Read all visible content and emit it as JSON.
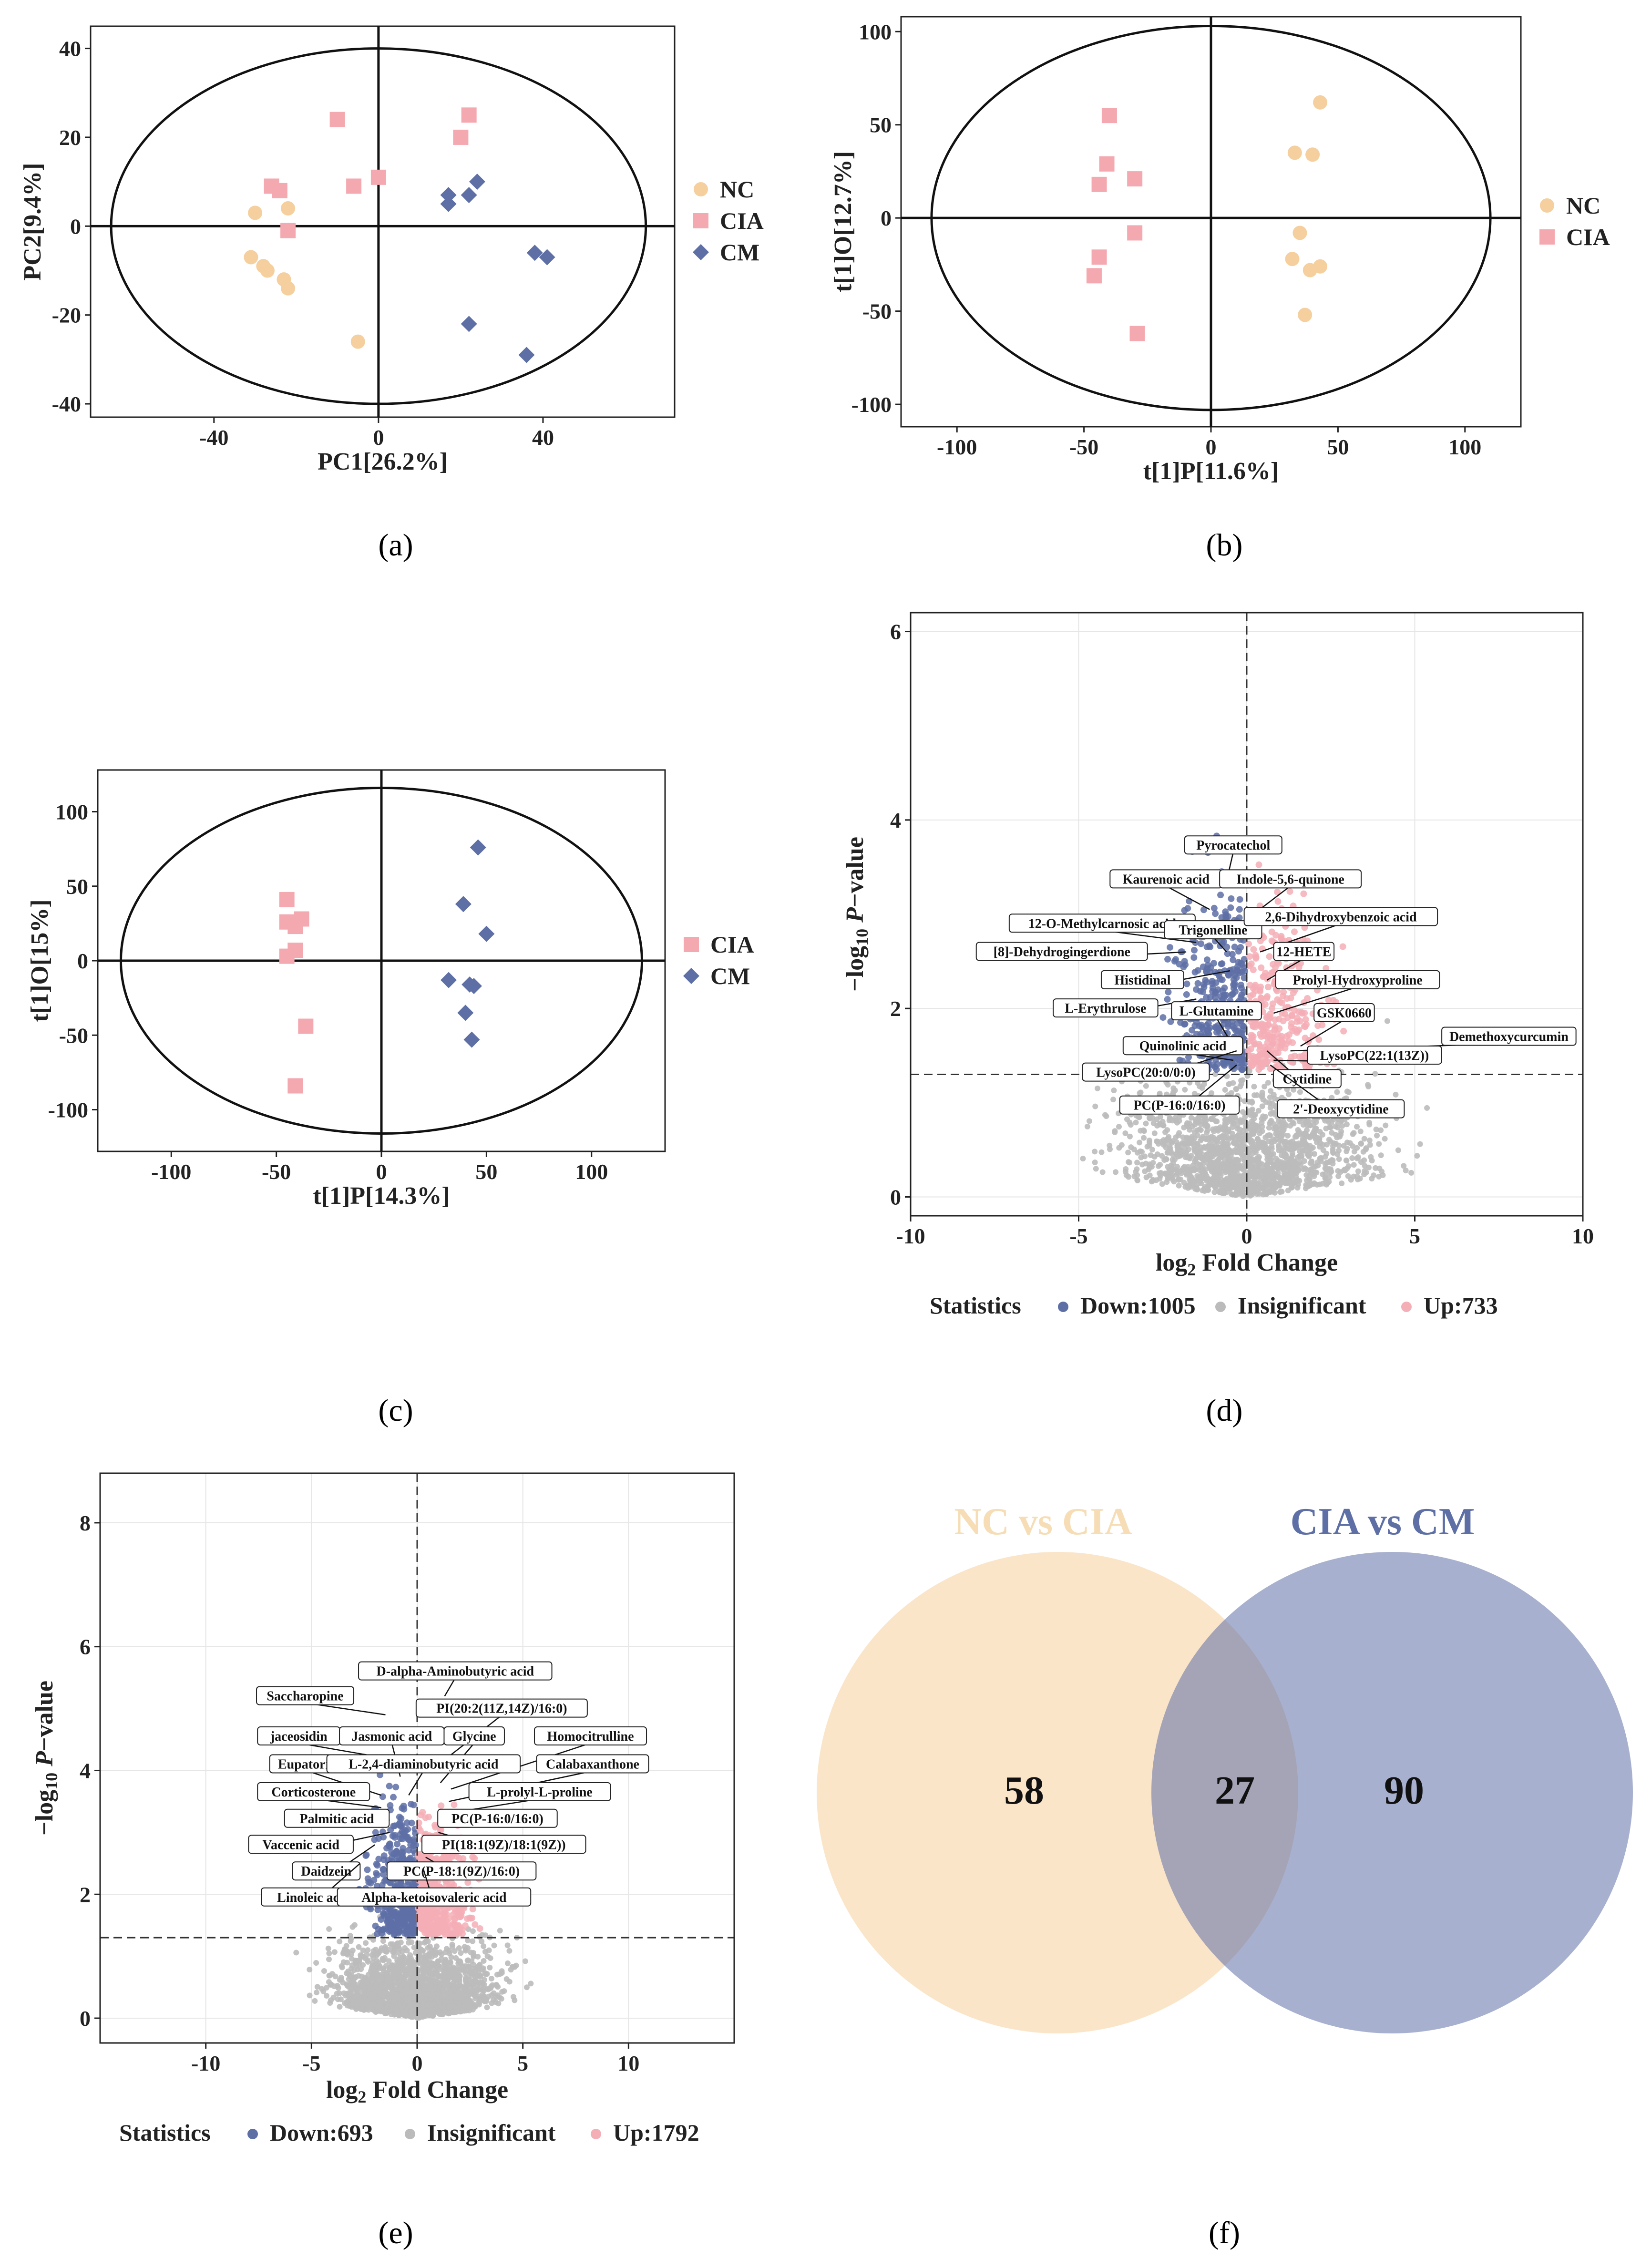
{
  "colors": {
    "NC": "#F5CF9D",
    "CIA": "#F4A9B0",
    "CM": "#5E6FA6",
    "down": "#5E6FA6",
    "up": "#F4AEB6",
    "insig": "#BBBBBB"
  },
  "chart_data": [
    {
      "panel": "(a)",
      "type": "scatter",
      "xlabel": "PC1[26.2%]",
      "ylabel": "PC2[9.4%]",
      "xlim": [
        -70,
        72
      ],
      "ylim": [
        -43,
        45
      ],
      "xticks": [
        -40,
        0,
        40
      ],
      "yticks": [
        -40,
        -20,
        0,
        20,
        40
      ],
      "ellipse": {
        "cx": 0,
        "cy": 0,
        "rx": 65,
        "ry": 40
      },
      "series": [
        {
          "name": "NC",
          "marker": "circle",
          "points": [
            [
              -30,
              3
            ],
            [
              -22,
              4
            ],
            [
              -28,
              -9
            ],
            [
              -27,
              -10
            ],
            [
              -23,
              -12
            ],
            [
              -22,
              -14
            ],
            [
              -31,
              -7
            ],
            [
              -5,
              -26
            ]
          ]
        },
        {
          "name": "CIA",
          "marker": "square",
          "points": [
            [
              -10,
              24
            ],
            [
              -26,
              9
            ],
            [
              -24,
              8
            ],
            [
              -22,
              -1
            ],
            [
              -6,
              9
            ],
            [
              0,
              11
            ],
            [
              22,
              25
            ],
            [
              20,
              20
            ]
          ]
        },
        {
          "name": "CM",
          "marker": "diamond",
          "points": [
            [
              17,
              7
            ],
            [
              17,
              5
            ],
            [
              22,
              7
            ],
            [
              24,
              10
            ],
            [
              38,
              -6
            ],
            [
              41,
              -7
            ],
            [
              22,
              -22
            ],
            [
              36,
              -29
            ]
          ]
        }
      ],
      "legend": [
        "NC",
        "CIA",
        "CM"
      ]
    },
    {
      "panel": "(b)",
      "type": "scatter",
      "xlabel": "t[1]P[11.6%]",
      "ylabel": "t[1]O[12.7%]",
      "xlim": [
        -122,
        122
      ],
      "ylim": [
        -112,
        108
      ],
      "xticks": [
        -100,
        -50,
        0,
        50,
        100
      ],
      "yticks": [
        -100,
        -50,
        0,
        50,
        100
      ],
      "ellipse": {
        "cx": 0,
        "cy": 0,
        "rx": 110,
        "ry": 103
      },
      "series": [
        {
          "name": "NC",
          "marker": "circle",
          "points": [
            [
              43,
              62
            ],
            [
              33,
              35
            ],
            [
              40,
              34
            ],
            [
              35,
              -8
            ],
            [
              32,
              -22
            ],
            [
              39,
              -28
            ],
            [
              43,
              -26
            ],
            [
              37,
              -52
            ]
          ]
        },
        {
          "name": "CIA",
          "marker": "square",
          "points": [
            [
              -40,
              55
            ],
            [
              -41,
              29
            ],
            [
              -44,
              18
            ],
            [
              -30,
              21
            ],
            [
              -30,
              -8
            ],
            [
              -44,
              -21
            ],
            [
              -46,
              -31
            ],
            [
              -29,
              -62
            ]
          ]
        }
      ],
      "legend": [
        "NC",
        "CIA"
      ]
    },
    {
      "panel": "(c)",
      "type": "scatter",
      "xlabel": "t[1]P[14.3%]",
      "ylabel": "t[1]O[15%]",
      "xlim": [
        -135,
        135
      ],
      "ylim": [
        -128,
        128
      ],
      "xticks": [
        -100,
        -50,
        0,
        50,
        100
      ],
      "yticks": [
        -100,
        -50,
        0,
        50,
        100
      ],
      "ellipse": {
        "cx": 0,
        "cy": 0,
        "rx": 124,
        "ry": 116
      },
      "series": [
        {
          "name": "CIA",
          "marker": "square",
          "points": [
            [
              -45,
              41
            ],
            [
              -45,
              26
            ],
            [
              -41,
              23
            ],
            [
              -38,
              28
            ],
            [
              -41,
              7
            ],
            [
              -45,
              3
            ],
            [
              -36,
              -44
            ],
            [
              -41,
              -84
            ]
          ]
        },
        {
          "name": "CM",
          "marker": "diamond",
          "points": [
            [
              46,
              76
            ],
            [
              39,
              38
            ],
            [
              50,
              18
            ],
            [
              32,
              -13
            ],
            [
              42,
              -16
            ],
            [
              44,
              -17
            ],
            [
              40,
              -35
            ],
            [
              43,
              -53
            ]
          ]
        }
      ],
      "legend": [
        "CIA",
        "CM"
      ]
    },
    {
      "panel": "(d)",
      "type": "scatter",
      "xlabel": "log2 Fold Change",
      "ylabel": "-log10 P-value",
      "xlim": [
        -10,
        10
      ],
      "ylim": [
        -0.2,
        6.2
      ],
      "xticks": [
        -10,
        -5,
        0,
        5,
        10
      ],
      "yticks": [
        0,
        2,
        4,
        6
      ],
      "threshold_y": 1.3,
      "threshold_x": 0,
      "legend_title": "Statistics",
      "legend": [
        "Down:1005",
        "Insignificant",
        "Up:733"
      ],
      "labels": [
        {
          "text": "Pyrocatechol",
          "x": -0.4,
          "y": 3.73,
          "px": -0.6,
          "py": 3.35
        },
        {
          "text": "Kaurenoic acid",
          "x": -2.4,
          "y": 3.37,
          "px": -1.1,
          "py": 3.05
        },
        {
          "text": "Indole-5,6-quinone",
          "x": 1.3,
          "y": 3.37,
          "px": 0.2,
          "py": 3.0
        },
        {
          "text": "12-O-Methylcarnosic acid",
          "x": -4.3,
          "y": 2.9,
          "px": -1.5,
          "py": 2.7
        },
        {
          "text": "Trigonelline",
          "x": -1.0,
          "y": 2.83,
          "px": -0.6,
          "py": 2.6
        },
        {
          "text": "2,6-Dihydroxybenzoic acid",
          "x": 2.8,
          "y": 2.97,
          "px": 0.4,
          "py": 2.6
        },
        {
          "text": "[8]-Dehydrogingerdione",
          "x": -5.5,
          "y": 2.6,
          "px": -1.8,
          "py": 2.6
        },
        {
          "text": "12-HETE",
          "x": 1.7,
          "y": 2.6,
          "px": 0.6,
          "py": 2.3
        },
        {
          "text": "Histidinal",
          "x": -3.1,
          "y": 2.3,
          "px": -0.5,
          "py": 2.4
        },
        {
          "text": "Prolyl-Hydroxyproline",
          "x": 3.3,
          "y": 2.3,
          "px": 0.8,
          "py": 1.95
        },
        {
          "text": "L-Erythrulose",
          "x": -4.2,
          "y": 2.0,
          "px": -1.5,
          "py": 2.1
        },
        {
          "text": "L-Glutamine",
          "x": -0.9,
          "y": 1.97,
          "px": -0.4,
          "py": 1.6
        },
        {
          "text": "GSK0660",
          "x": 2.9,
          "y": 1.95,
          "px": 1.6,
          "py": 1.6
        },
        {
          "text": "Demethoxycurcumin",
          "x": 7.8,
          "y": 1.7,
          "px": 1.3,
          "py": 1.55
        },
        {
          "text": "Quinolinic acid",
          "x": -1.9,
          "y": 1.6,
          "px": -0.4,
          "py": 1.45
        },
        {
          "text": "LysoPC(22:1(13Z))",
          "x": 3.8,
          "y": 1.5,
          "px": 0.8,
          "py": 1.45
        },
        {
          "text": "LysoPC(20:0/0:0)",
          "x": -3.0,
          "y": 1.32,
          "px": -0.3,
          "py": 1.55
        },
        {
          "text": "Cytidine",
          "x": 1.8,
          "y": 1.25,
          "px": 0.6,
          "py": 1.55
        },
        {
          "text": "PC(P-16:0/16:0)",
          "x": -2.0,
          "y": 0.97,
          "px": -0.3,
          "py": 1.4
        },
        {
          "text": "2'-Deoxycytidine",
          "x": 2.8,
          "y": 0.93,
          "px": 0.7,
          "py": 1.4
        }
      ]
    },
    {
      "panel": "(e)",
      "type": "scatter",
      "xlabel": "log2 Fold Change",
      "ylabel": "-log10 P-value",
      "xlim": [
        -15,
        15
      ],
      "ylim": [
        -0.4,
        8.8
      ],
      "xticks": [
        -10,
        -5,
        0,
        5,
        10
      ],
      "yticks": [
        0,
        2,
        4,
        6,
        8
      ],
      "threshold_y": 1.3,
      "threshold_x": 0,
      "legend_title": "Statistics",
      "legend": [
        "Down:693",
        "Insignificant",
        "Up:1792"
      ],
      "labels": [
        {
          "text": "D-alpha-Aminobutyric acid",
          "x": 1.8,
          "y": 5.6,
          "px": 1.3,
          "py": 5.2
        },
        {
          "text": "Saccharopine",
          "x": -5.3,
          "y": 5.2,
          "px": -1.5,
          "py": 4.9
        },
        {
          "text": "PI(20:2(11Z,14Z)/16:0)",
          "x": 4.0,
          "y": 5.0,
          "px": 1.4,
          "py": 4.2
        },
        {
          "text": "jaceosidin",
          "x": -5.6,
          "y": 4.55,
          "px": -1.5,
          "py": 4.2
        },
        {
          "text": "Jasmonic acid",
          "x": -1.2,
          "y": 4.55,
          "px": -0.8,
          "py": 3.9
        },
        {
          "text": "Glycine",
          "x": 2.7,
          "y": 4.55,
          "px": 1.1,
          "py": 3.8
        },
        {
          "text": "Homocitrulline",
          "x": 8.2,
          "y": 4.55,
          "px": 1.6,
          "py": 3.7
        },
        {
          "text": "Eupatorin",
          "x": -5.2,
          "y": 4.1,
          "px": -1.7,
          "py": 3.6
        },
        {
          "text": "L-2,4-diaminobutyric acid",
          "x": 0.3,
          "y": 4.1,
          "px": -0.4,
          "py": 3.6
        },
        {
          "text": "Calabaxanthone",
          "x": 8.3,
          "y": 4.1,
          "px": 1.5,
          "py": 3.5
        },
        {
          "text": "Corticosterone",
          "x": -4.9,
          "y": 3.65,
          "px": -1.7,
          "py": 3.4
        },
        {
          "text": "L-prolyl-L-proline",
          "x": 5.8,
          "y": 3.65,
          "px": 1.3,
          "py": 3.3
        },
        {
          "text": "Palmitic acid",
          "x": -3.8,
          "y": 3.22,
          "px": -1.3,
          "py": 3.2
        },
        {
          "text": "PC(P-16:0/16:0)",
          "x": 3.8,
          "y": 3.22,
          "px": 1.0,
          "py": 3.1
        },
        {
          "text": "Vaccenic acid",
          "x": -5.5,
          "y": 2.8,
          "px": -1.3,
          "py": 3.0
        },
        {
          "text": "PI(18:1(9Z)/18:1(9Z))",
          "x": 4.1,
          "y": 2.8,
          "px": 1.0,
          "py": 3.0
        },
        {
          "text": "Daidzein",
          "x": -4.3,
          "y": 2.37,
          "px": -2.0,
          "py": 2.8
        },
        {
          "text": "PC(P-18:1(9Z)/16:0)",
          "x": 2.1,
          "y": 2.37,
          "px": 0.4,
          "py": 2.6
        },
        {
          "text": "Linoleic acid",
          "x": -4.9,
          "y": 1.95,
          "px": -2.7,
          "py": 2.5
        },
        {
          "text": "Alpha-ketoisovaleric acid",
          "x": 0.8,
          "y": 1.95,
          "px": 0.3,
          "py": 2.4
        }
      ]
    },
    {
      "panel": "(f)",
      "type": "venn",
      "sets": [
        {
          "name": "NC vs CIA",
          "only": 58
        },
        {
          "name": "CIA vs CM",
          "only": 90
        }
      ],
      "intersection": 27
    }
  ],
  "captions": {
    "a": "(a)",
    "b": "(b)",
    "c": "(c)",
    "d": "(d)",
    "e": "(e)",
    "f": "(f)"
  }
}
